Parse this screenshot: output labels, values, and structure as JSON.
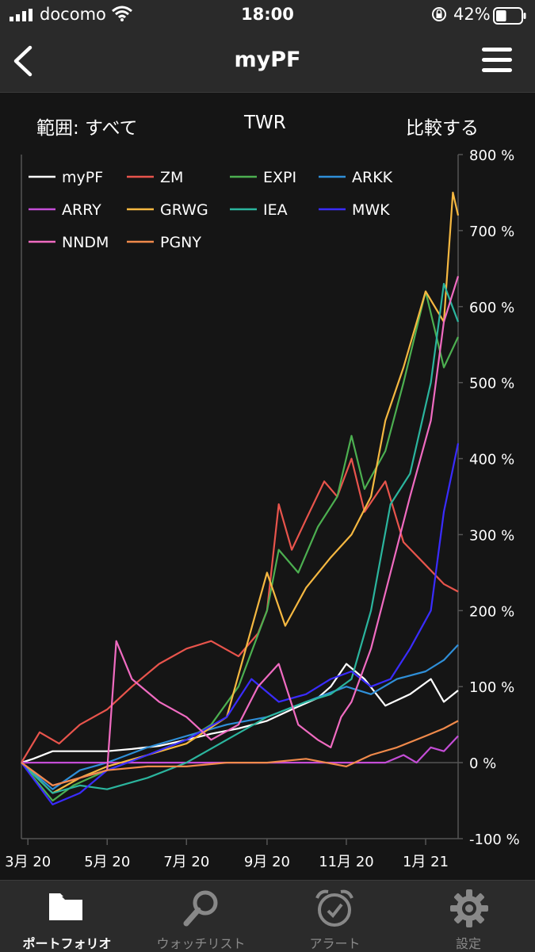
{
  "status_bar": {
    "carrier": "docomo",
    "time": "18:00",
    "battery_percent": "42%",
    "battery_level": 0.42
  },
  "nav": {
    "title": "myPF"
  },
  "controls": {
    "range_label": "範囲: すべて",
    "mode_label": "TWR",
    "compare_label": "比較する"
  },
  "chart_data": {
    "type": "line",
    "xlabel": "",
    "ylabel": "",
    "x_tick_labels": [
      "3月 20",
      "5月 20",
      "7月 20",
      "9月 20",
      "11月 20",
      "1月 21"
    ],
    "y_tick_labels": [
      "800 %",
      "700 %",
      "600 %",
      "500 %",
      "400 %",
      "300 %",
      "200 %",
      "100 %",
      "0 %",
      "-100 %"
    ],
    "ylim": [
      -100,
      800
    ],
    "x_range": [
      "2020-02-25",
      "2021-01-26"
    ],
    "y_axis_side": "right",
    "grid": false,
    "legend_position": "top-left",
    "series": [
      {
        "name": "myPF",
        "color": "#ffffff",
        "points": [
          [
            "2020-02-25",
            0
          ],
          [
            "2020-03-05",
            5
          ],
          [
            "2020-03-20",
            15
          ],
          [
            "2020-04-10",
            15
          ],
          [
            "2020-05-01",
            15
          ],
          [
            "2020-05-20",
            18
          ],
          [
            "2020-06-10",
            22
          ],
          [
            "2020-07-01",
            30
          ],
          [
            "2020-07-20",
            38
          ],
          [
            "2020-08-10",
            45
          ],
          [
            "2020-09-01",
            55
          ],
          [
            "2020-09-20",
            70
          ],
          [
            "2020-10-10",
            85
          ],
          [
            "2020-10-20",
            100
          ],
          [
            "2020-11-01",
            130
          ],
          [
            "2020-11-15",
            110
          ],
          [
            "2020-12-01",
            75
          ],
          [
            "2020-12-20",
            90
          ],
          [
            "2021-01-05",
            110
          ],
          [
            "2021-01-15",
            80
          ],
          [
            "2021-01-26",
            95
          ]
        ]
      },
      {
        "name": "ZM",
        "color": "#e8544c",
        "points": [
          [
            "2020-02-25",
            0
          ],
          [
            "2020-03-10",
            40
          ],
          [
            "2020-03-25",
            25
          ],
          [
            "2020-04-10",
            50
          ],
          [
            "2020-05-01",
            70
          ],
          [
            "2020-05-20",
            100
          ],
          [
            "2020-06-10",
            130
          ],
          [
            "2020-07-01",
            150
          ],
          [
            "2020-07-20",
            160
          ],
          [
            "2020-08-10",
            140
          ],
          [
            "2020-08-25",
            170
          ],
          [
            "2020-09-01",
            200
          ],
          [
            "2020-09-10",
            340
          ],
          [
            "2020-09-20",
            280
          ],
          [
            "2020-10-01",
            320
          ],
          [
            "2020-10-15",
            370
          ],
          [
            "2020-10-25",
            350
          ],
          [
            "2020-11-05",
            400
          ],
          [
            "2020-11-15",
            330
          ],
          [
            "2020-12-01",
            370
          ],
          [
            "2020-12-15",
            290
          ],
          [
            "2021-01-01",
            260
          ],
          [
            "2021-01-15",
            235
          ],
          [
            "2021-01-26",
            225
          ]
        ]
      },
      {
        "name": "EXPI",
        "color": "#4caf50",
        "points": [
          [
            "2020-02-25",
            0
          ],
          [
            "2020-03-20",
            -50
          ],
          [
            "2020-04-05",
            -30
          ],
          [
            "2020-05-01",
            -10
          ],
          [
            "2020-06-01",
            10
          ],
          [
            "2020-07-01",
            30
          ],
          [
            "2020-07-20",
            50
          ],
          [
            "2020-08-10",
            100
          ],
          [
            "2020-09-01",
            200
          ],
          [
            "2020-09-10",
            280
          ],
          [
            "2020-09-25",
            250
          ],
          [
            "2020-10-10",
            310
          ],
          [
            "2020-10-25",
            350
          ],
          [
            "2020-11-05",
            430
          ],
          [
            "2020-11-15",
            360
          ],
          [
            "2020-12-01",
            410
          ],
          [
            "2020-12-15",
            500
          ],
          [
            "2021-01-01",
            620
          ],
          [
            "2021-01-15",
            520
          ],
          [
            "2021-01-26",
            560
          ]
        ]
      },
      {
        "name": "ARKK",
        "color": "#2f8fd8",
        "points": [
          [
            "2020-02-25",
            0
          ],
          [
            "2020-03-20",
            -35
          ],
          [
            "2020-04-10",
            -10
          ],
          [
            "2020-05-01",
            0
          ],
          [
            "2020-06-01",
            20
          ],
          [
            "2020-07-01",
            35
          ],
          [
            "2020-08-01",
            50
          ],
          [
            "2020-09-01",
            60
          ],
          [
            "2020-10-01",
            80
          ],
          [
            "2020-11-01",
            100
          ],
          [
            "2020-11-20",
            90
          ],
          [
            "2020-12-10",
            110
          ],
          [
            "2021-01-01",
            120
          ],
          [
            "2021-01-15",
            135
          ],
          [
            "2021-01-26",
            155
          ]
        ]
      },
      {
        "name": "ARRY",
        "color": "#c44dd6",
        "points": [
          [
            "2020-02-25",
            0
          ],
          [
            "2020-12-01",
            0
          ],
          [
            "2020-12-15",
            10
          ],
          [
            "2020-12-25",
            0
          ],
          [
            "2021-01-05",
            20
          ],
          [
            "2021-01-15",
            15
          ],
          [
            "2021-01-26",
            35
          ]
        ]
      },
      {
        "name": "GRWG",
        "color": "#f5b841",
        "points": [
          [
            "2020-02-25",
            0
          ],
          [
            "2020-03-20",
            -40
          ],
          [
            "2020-04-10",
            -20
          ],
          [
            "2020-05-01",
            -5
          ],
          [
            "2020-06-01",
            10
          ],
          [
            "2020-07-01",
            25
          ],
          [
            "2020-08-01",
            60
          ],
          [
            "2020-09-01",
            250
          ],
          [
            "2020-09-15",
            180
          ],
          [
            "2020-10-01",
            230
          ],
          [
            "2020-10-20",
            270
          ],
          [
            "2020-11-05",
            300
          ],
          [
            "2020-11-20",
            350
          ],
          [
            "2020-12-01",
            450
          ],
          [
            "2020-12-15",
            520
          ],
          [
            "2021-01-01",
            620
          ],
          [
            "2021-01-15",
            580
          ],
          [
            "2021-01-22",
            750
          ],
          [
            "2021-01-26",
            720
          ]
        ]
      },
      {
        "name": "IEA",
        "color": "#2bb59e",
        "points": [
          [
            "2020-02-25",
            0
          ],
          [
            "2020-03-20",
            -40
          ],
          [
            "2020-04-10",
            -30
          ],
          [
            "2020-05-01",
            -35
          ],
          [
            "2020-06-01",
            -20
          ],
          [
            "2020-07-01",
            0
          ],
          [
            "2020-08-01",
            30
          ],
          [
            "2020-09-01",
            60
          ],
          [
            "2020-10-01",
            80
          ],
          [
            "2020-10-20",
            90
          ],
          [
            "2020-11-05",
            110
          ],
          [
            "2020-11-20",
            200
          ],
          [
            "2020-12-05",
            340
          ],
          [
            "2020-12-20",
            380
          ],
          [
            "2021-01-05",
            500
          ],
          [
            "2021-01-15",
            630
          ],
          [
            "2021-01-26",
            580
          ]
        ]
      },
      {
        "name": "MWK",
        "color": "#3a2cff",
        "points": [
          [
            "2020-02-25",
            0
          ],
          [
            "2020-03-20",
            -55
          ],
          [
            "2020-04-10",
            -40
          ],
          [
            "2020-05-01",
            -10
          ],
          [
            "2020-06-01",
            10
          ],
          [
            "2020-07-01",
            30
          ],
          [
            "2020-08-01",
            60
          ],
          [
            "2020-08-20",
            110
          ],
          [
            "2020-09-10",
            80
          ],
          [
            "2020-10-01",
            90
          ],
          [
            "2020-10-20",
            110
          ],
          [
            "2020-11-05",
            120
          ],
          [
            "2020-11-20",
            100
          ],
          [
            "2020-12-05",
            110
          ],
          [
            "2020-12-20",
            150
          ],
          [
            "2021-01-05",
            200
          ],
          [
            "2021-01-15",
            330
          ],
          [
            "2021-01-26",
            420
          ]
        ]
      },
      {
        "name": "NNDM",
        "color": "#f06bc1",
        "points": [
          [
            "2020-02-25",
            0
          ],
          [
            "2020-03-20",
            -30
          ],
          [
            "2020-04-10",
            -20
          ],
          [
            "2020-05-01",
            -10
          ],
          [
            "2020-05-08",
            160
          ],
          [
            "2020-05-20",
            110
          ],
          [
            "2020-06-10",
            80
          ],
          [
            "2020-07-01",
            60
          ],
          [
            "2020-07-20",
            30
          ],
          [
            "2020-08-10",
            50
          ],
          [
            "2020-08-25",
            100
          ],
          [
            "2020-09-10",
            130
          ],
          [
            "2020-09-25",
            50
          ],
          [
            "2020-10-10",
            30
          ],
          [
            "2020-10-20",
            20
          ],
          [
            "2020-10-28",
            60
          ],
          [
            "2020-11-05",
            80
          ],
          [
            "2020-11-20",
            150
          ],
          [
            "2020-12-05",
            250
          ],
          [
            "2020-12-20",
            350
          ],
          [
            "2021-01-05",
            450
          ],
          [
            "2021-01-15",
            580
          ],
          [
            "2021-01-26",
            640
          ]
        ]
      },
      {
        "name": "PGNY",
        "color": "#f08a4b",
        "points": [
          [
            "2020-02-25",
            0
          ],
          [
            "2020-03-20",
            -30
          ],
          [
            "2020-04-10",
            -20
          ],
          [
            "2020-05-01",
            -10
          ],
          [
            "2020-06-01",
            -5
          ],
          [
            "2020-07-01",
            -5
          ],
          [
            "2020-08-01",
            0
          ],
          [
            "2020-09-01",
            0
          ],
          [
            "2020-10-01",
            5
          ],
          [
            "2020-11-01",
            -5
          ],
          [
            "2020-11-20",
            10
          ],
          [
            "2020-12-10",
            20
          ],
          [
            "2021-01-01",
            35
          ],
          [
            "2021-01-15",
            45
          ],
          [
            "2021-01-26",
            55
          ]
        ]
      }
    ]
  },
  "tab_bar": {
    "tabs": [
      {
        "label": "ポートフォリオ",
        "icon": "folder-icon",
        "active": true
      },
      {
        "label": "ウォッチリスト",
        "icon": "magnifier-icon",
        "active": false
      },
      {
        "label": "アラート",
        "icon": "alarm-clock-icon",
        "active": false
      },
      {
        "label": "設定",
        "icon": "gear-icon",
        "active": false
      }
    ]
  }
}
